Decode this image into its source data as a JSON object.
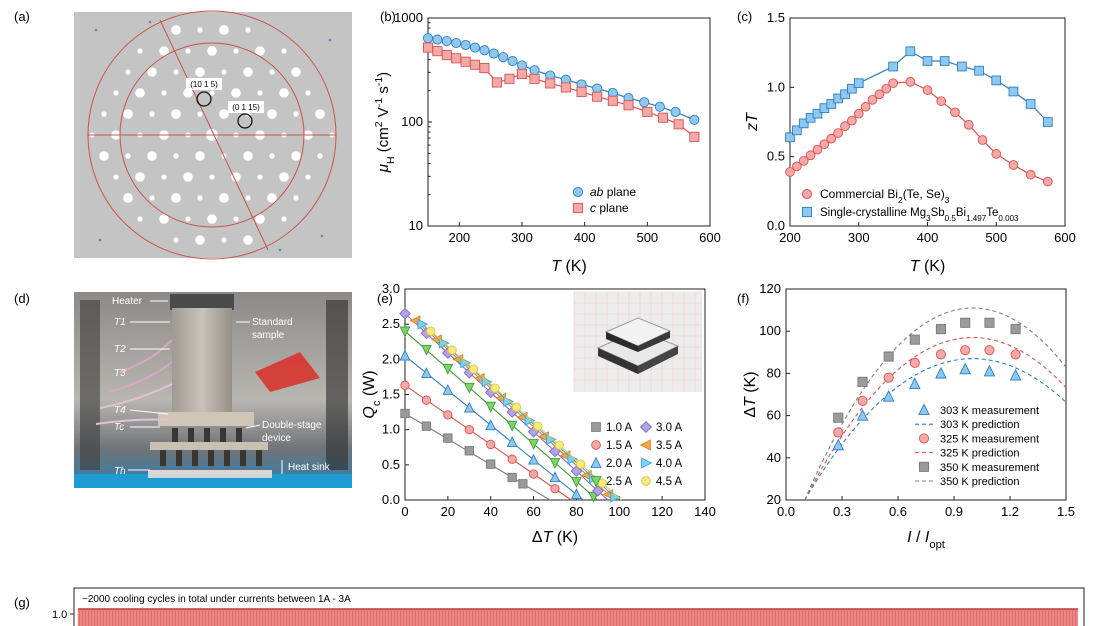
{
  "panel_labels": {
    "a": "(a)",
    "b": "(b)",
    "c": "(c)",
    "d": "(d)",
    "e": "(e)",
    "f": "(f)",
    "g": "(g)"
  },
  "diffraction": {
    "spot1": "(10 1 5)",
    "spot2": "(0 1 15)"
  },
  "photo_labels": {
    "heater": "Heater",
    "t1": "T1",
    "t2": "T2",
    "t3": "T3",
    "t4": "T4",
    "tc": "Tc",
    "th": "Th",
    "standard": "Standard",
    "sample": "sample",
    "double_stage": "Double-stage",
    "device": "device",
    "heat_sink": "Heat sink"
  },
  "colors": {
    "blue_fill": "#8ec7ef",
    "blue_stroke": "#2f7fc1",
    "red_fill": "#f4a8a8",
    "red_stroke": "#d9534f",
    "gray": "#9a9a9a",
    "purple": "#b3a2e6",
    "orange": "#f5a64a",
    "cyan": "#7fd0ef",
    "yellow": "#f7ea7a",
    "green": "#7dd36a",
    "line_blue": "#2f7fc1",
    "line_red": "#d9534f"
  },
  "chart_data": [
    {
      "id": "b",
      "type": "scatter",
      "title": "",
      "xlabel": "T (K)",
      "ylabel": "μH (cm2 V-1 s-1)",
      "xlim": [
        150,
        600
      ],
      "ylim": [
        10,
        1000
      ],
      "yscale": "log",
      "xticks": [
        200,
        300,
        400,
        500,
        600
      ],
      "yticks": [
        10,
        100,
        1000
      ],
      "legend_position": "bottom-right",
      "series": [
        {
          "name": "ab plane",
          "marker": "circle",
          "color": "blue",
          "x": [
            150,
            165,
            180,
            195,
            210,
            225,
            240,
            255,
            270,
            285,
            300,
            320,
            345,
            370,
            395,
            420,
            445,
            470,
            495,
            520,
            545,
            575
          ],
          "y": [
            640,
            620,
            600,
            575,
            550,
            520,
            490,
            455,
            420,
            385,
            350,
            315,
            280,
            255,
            230,
            210,
            190,
            170,
            155,
            140,
            125,
            105
          ]
        },
        {
          "name": "c plane",
          "marker": "square",
          "color": "red",
          "x": [
            150,
            165,
            180,
            195,
            210,
            225,
            240,
            260,
            280,
            300,
            320,
            345,
            370,
            395,
            420,
            445,
            470,
            500,
            525,
            550,
            575
          ],
          "y": [
            520,
            480,
            440,
            410,
            380,
            355,
            330,
            240,
            260,
            290,
            260,
            235,
            215,
            195,
            175,
            160,
            145,
            125,
            110,
            95,
            72
          ]
        }
      ]
    },
    {
      "id": "c",
      "type": "scatter",
      "xlabel": "T (K)",
      "ylabel": "zT",
      "xlim": [
        200,
        600
      ],
      "ylim": [
        0.0,
        1.5
      ],
      "xticks": [
        200,
        300,
        400,
        500,
        600
      ],
      "yticks": [
        0.0,
        0.5,
        1.0,
        1.5
      ],
      "legend_position": "bottom",
      "series": [
        {
          "name": "Commercial Bi2(Te, Se)3",
          "marker": "circle",
          "color": "red",
          "x": [
            200,
            210,
            220,
            230,
            240,
            250,
            260,
            270,
            280,
            290,
            300,
            310,
            320,
            330,
            340,
            350,
            375,
            400,
            420,
            440,
            460,
            480,
            500,
            525,
            550,
            575
          ],
          "y": [
            0.39,
            0.43,
            0.47,
            0.51,
            0.55,
            0.59,
            0.63,
            0.67,
            0.72,
            0.76,
            0.81,
            0.86,
            0.91,
            0.95,
            0.99,
            1.03,
            1.04,
            0.98,
            0.9,
            0.82,
            0.73,
            0.62,
            0.52,
            0.44,
            0.37,
            0.32
          ]
        },
        {
          "name": "Single-crystalline Mg3Sb0.5Bi1.497Te0.003",
          "marker": "square",
          "color": "blue",
          "x": [
            200,
            210,
            220,
            230,
            240,
            250,
            260,
            270,
            280,
            290,
            300,
            350,
            375,
            400,
            425,
            450,
            475,
            500,
            525,
            550,
            575
          ],
          "y": [
            0.64,
            0.69,
            0.74,
            0.78,
            0.81,
            0.85,
            0.88,
            0.92,
            0.95,
            0.99,
            1.03,
            1.15,
            1.26,
            1.19,
            1.19,
            1.15,
            1.12,
            1.05,
            0.97,
            0.88,
            0.75
          ]
        }
      ],
      "fit_curves": true
    },
    {
      "id": "e",
      "type": "scatter",
      "xlabel": "ΔT (K)",
      "ylabel": "Qc (W)",
      "xlim": [
        0,
        140
      ],
      "ylim": [
        0.0,
        3.0
      ],
      "xticks": [
        0,
        20,
        40,
        60,
        80,
        100,
        120,
        140
      ],
      "yticks": [
        0.0,
        0.5,
        1.0,
        1.5,
        2.0,
        2.5,
        3.0
      ],
      "legend_position": "bottom-right",
      "series": [
        {
          "name": "1.0 A",
          "marker": "square",
          "color": "gray",
          "x": [
            0,
            10,
            20,
            30,
            40,
            50,
            55
          ],
          "y": [
            1.23,
            1.05,
            0.88,
            0.7,
            0.51,
            0.32,
            0.23
          ]
        },
        {
          "name": "1.5 A",
          "marker": "circle",
          "color": "red",
          "x": [
            0,
            10,
            20,
            30,
            40,
            50,
            60,
            70
          ],
          "y": [
            1.63,
            1.42,
            1.21,
            1.0,
            0.79,
            0.58,
            0.37,
            0.16
          ]
        },
        {
          "name": "2.0 A",
          "marker": "triangle-up",
          "color": "blue",
          "x": [
            0,
            10,
            20,
            30,
            40,
            50,
            60,
            70,
            80
          ],
          "y": [
            2.05,
            1.8,
            1.56,
            1.31,
            1.06,
            0.82,
            0.57,
            0.32,
            0.08
          ]
        },
        {
          "name": "2.5 A",
          "marker": "triangle-down",
          "color": "green",
          "x": [
            0,
            10,
            20,
            30,
            40,
            50,
            60,
            70,
            80,
            88
          ],
          "y": [
            2.4,
            2.14,
            1.87,
            1.6,
            1.33,
            1.06,
            0.8,
            0.53,
            0.26,
            0.05
          ]
        },
        {
          "name": "3.0 A",
          "marker": "diamond",
          "color": "purple",
          "x": [
            0,
            10,
            20,
            30,
            40,
            50,
            60,
            70,
            80,
            90
          ],
          "y": [
            2.65,
            2.37,
            2.09,
            1.81,
            1.53,
            1.25,
            0.97,
            0.69,
            0.41,
            0.13
          ]
        },
        {
          "name": "3.5 A",
          "marker": "triangle-left",
          "color": "orange",
          "x": [
            5,
            15,
            25,
            35,
            45,
            55,
            65,
            75,
            85,
            95
          ],
          "y": [
            2.55,
            2.28,
            2.0,
            1.73,
            1.45,
            1.18,
            0.9,
            0.63,
            0.35,
            0.08
          ]
        },
        {
          "name": "4.0 A",
          "marker": "triangle-right",
          "color": "cyan",
          "x": [
            8,
            18,
            28,
            38,
            48,
            58,
            68,
            78,
            88,
            98
          ],
          "y": [
            2.5,
            2.23,
            1.95,
            1.68,
            1.4,
            1.13,
            0.86,
            0.58,
            0.31,
            0.04
          ]
        },
        {
          "name": "4.5 A",
          "marker": "circle",
          "color": "yellow",
          "x": [
            12,
            22,
            32,
            42,
            52,
            62,
            72,
            82,
            92
          ],
          "y": [
            2.4,
            2.13,
            1.86,
            1.59,
            1.32,
            1.05,
            0.78,
            0.51,
            0.24
          ]
        }
      ]
    },
    {
      "id": "f",
      "type": "scatter",
      "xlabel": "I / Iopt",
      "ylabel": "ΔT (K)",
      "xlim": [
        0.0,
        1.5
      ],
      "ylim": [
        20,
        120
      ],
      "xticks": [
        0.0,
        0.3,
        0.6,
        0.9,
        1.2,
        1.5
      ],
      "yticks": [
        20,
        40,
        60,
        80,
        100,
        120
      ],
      "legend_position": "bottom-right",
      "series": [
        {
          "name": "303 K measurement",
          "marker": "triangle-up",
          "color": "blue",
          "x": [
            0.28,
            0.41,
            0.55,
            0.69,
            0.83,
            0.96,
            1.09,
            1.23
          ],
          "y": [
            46,
            60,
            69,
            75,
            80,
            82,
            81,
            79
          ]
        },
        {
          "name": "325 K measurement",
          "marker": "circle",
          "color": "red",
          "x": [
            0.28,
            0.41,
            0.55,
            0.69,
            0.83,
            0.96,
            1.09,
            1.23
          ],
          "y": [
            52,
            67,
            78,
            85,
            89,
            91,
            91,
            89
          ]
        },
        {
          "name": "350 K measurement",
          "marker": "square",
          "color": "gray",
          "x": [
            0.28,
            0.41,
            0.55,
            0.69,
            0.83,
            0.96,
            1.09,
            1.23
          ],
          "y": [
            59,
            76,
            88,
            96,
            101,
            104,
            104,
            101
          ]
        }
      ],
      "predictions": [
        {
          "name": "303 K prediction",
          "color": "blue",
          "peak": 87
        },
        {
          "name": "325 K prediction",
          "color": "red",
          "peak": 97
        },
        {
          "name": "350 K prediction",
          "color": "gray",
          "peak": 111
        }
      ]
    },
    {
      "id": "g",
      "type": "area",
      "annotation": "~2000 cooling cycles in total under currents between 1A - 3A",
      "ytick": "1.0",
      "cycles": 2000
    }
  ]
}
